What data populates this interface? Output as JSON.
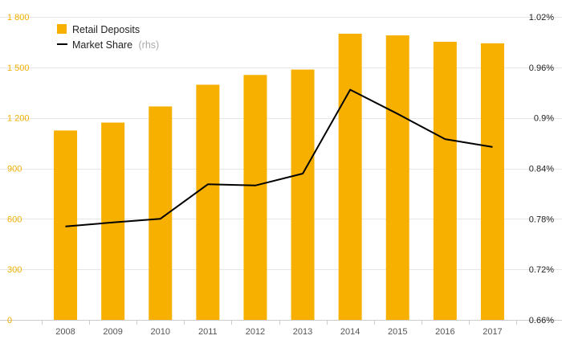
{
  "chart_data": {
    "type": "bar",
    "categories": [
      "2008",
      "2009",
      "2010",
      "2011",
      "2012",
      "2013",
      "2014",
      "2015",
      "2016",
      "2017"
    ],
    "series": [
      {
        "name": "Retail Deposits",
        "type": "bar",
        "axis": "left",
        "color": "#f7b000",
        "values": [
          1125,
          1172,
          1268,
          1397,
          1455,
          1487,
          1700,
          1690,
          1652,
          1643
        ]
      },
      {
        "name": "Market Share",
        "name_suffix": "(rhs)",
        "type": "line",
        "axis": "right",
        "color": "#000000",
        "values": [
          0.7711,
          0.7757,
          0.7801,
          0.8211,
          0.8197,
          0.8338,
          0.9335,
          0.9047,
          0.8748,
          0.8654
        ]
      }
    ],
    "y_left": {
      "ylim": [
        0,
        1800
      ],
      "ticks": [
        0,
        300,
        600,
        900,
        1200,
        1500,
        1800
      ],
      "tick_labels": [
        "0",
        "300",
        "600",
        "900",
        "1 200",
        "1 500",
        "1 800"
      ]
    },
    "y_right": {
      "ylim": [
        0.66,
        1.02
      ],
      "ticks": [
        0.66,
        0.72,
        0.78,
        0.84,
        0.9,
        0.96,
        1.02
      ],
      "tick_labels": [
        "0.66%",
        "0.72%",
        "0.78%",
        "0.84%",
        "0.9%",
        "0.96%",
        "1.02%"
      ]
    },
    "grid": true,
    "legend_position": "top-left",
    "title": "",
    "xlabel": "",
    "ylabel": ""
  }
}
